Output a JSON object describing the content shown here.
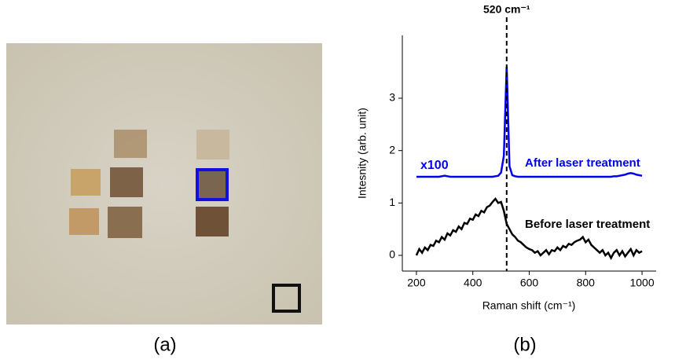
{
  "chart_data": {
    "type": "line",
    "panel_labels": [
      "(a)",
      "(b)"
    ],
    "xlabel": "Raman shift (cm⁻¹)",
    "ylabel": "Intesnity (arb. unit)",
    "vline": {
      "value": 520,
      "label": "520 cm⁻¹"
    },
    "annotations": [
      "x100"
    ],
    "x": [
      200,
      210,
      220,
      230,
      240,
      250,
      260,
      270,
      280,
      290,
      300,
      310,
      320,
      330,
      340,
      350,
      360,
      370,
      380,
      390,
      400,
      410,
      420,
      430,
      440,
      450,
      460,
      470,
      480,
      490,
      500,
      510,
      520,
      530,
      540,
      550,
      560,
      570,
      580,
      590,
      600,
      610,
      620,
      630,
      640,
      650,
      660,
      670,
      680,
      690,
      700,
      710,
      720,
      730,
      740,
      750,
      760,
      770,
      780,
      790,
      800,
      810,
      820,
      830,
      840,
      850,
      860,
      870,
      880,
      890,
      900,
      910,
      920,
      930,
      940,
      950,
      960,
      970,
      980,
      990,
      1000
    ],
    "series": [
      {
        "name": "After laser treatment",
        "color": "#0000ee",
        "values": [
          1.5,
          1.5,
          1.5,
          1.5,
          1.5,
          1.5,
          1.5,
          1.5,
          1.5,
          1.51,
          1.52,
          1.51,
          1.5,
          1.5,
          1.5,
          1.5,
          1.5,
          1.5,
          1.5,
          1.5,
          1.5,
          1.5,
          1.5,
          1.5,
          1.5,
          1.5,
          1.5,
          1.5,
          1.51,
          1.52,
          1.58,
          1.9,
          3.6,
          1.7,
          1.53,
          1.51,
          1.5,
          1.5,
          1.5,
          1.5,
          1.5,
          1.5,
          1.5,
          1.5,
          1.5,
          1.5,
          1.5,
          1.5,
          1.5,
          1.5,
          1.5,
          1.5,
          1.5,
          1.5,
          1.5,
          1.5,
          1.5,
          1.5,
          1.5,
          1.5,
          1.5,
          1.5,
          1.5,
          1.5,
          1.5,
          1.5,
          1.5,
          1.5,
          1.5,
          1.5,
          1.51,
          1.51,
          1.52,
          1.53,
          1.54,
          1.56,
          1.57,
          1.56,
          1.54,
          1.53,
          1.52
        ]
      },
      {
        "name": "Before laser treatment",
        "color": "#000000",
        "values": [
          0.0,
          0.12,
          0.05,
          0.15,
          0.1,
          0.2,
          0.18,
          0.28,
          0.25,
          0.35,
          0.3,
          0.42,
          0.38,
          0.48,
          0.45,
          0.55,
          0.5,
          0.62,
          0.6,
          0.7,
          0.68,
          0.78,
          0.75,
          0.85,
          0.82,
          0.92,
          0.95,
          1.02,
          1.08,
          1.0,
          1.02,
          0.85,
          0.6,
          0.5,
          0.4,
          0.35,
          0.28,
          0.25,
          0.2,
          0.15,
          0.12,
          0.1,
          0.05,
          0.08,
          0.0,
          0.05,
          0.1,
          0.02,
          0.1,
          0.08,
          0.15,
          0.1,
          0.18,
          0.15,
          0.22,
          0.2,
          0.25,
          0.28,
          0.3,
          0.35,
          0.25,
          0.3,
          0.2,
          0.15,
          0.1,
          0.05,
          0.1,
          0.0,
          0.05,
          -0.05,
          0.05,
          0.1,
          0.0,
          0.08,
          -0.02,
          0.05,
          0.12,
          0.0,
          0.1,
          0.05,
          0.08
        ]
      }
    ],
    "xlim": [
      150,
      1050
    ],
    "ylim": [
      -0.3,
      4.2
    ],
    "xticks": [
      200,
      400,
      600,
      800,
      1000
    ],
    "yticks": [
      0,
      1,
      2,
      3
    ]
  }
}
